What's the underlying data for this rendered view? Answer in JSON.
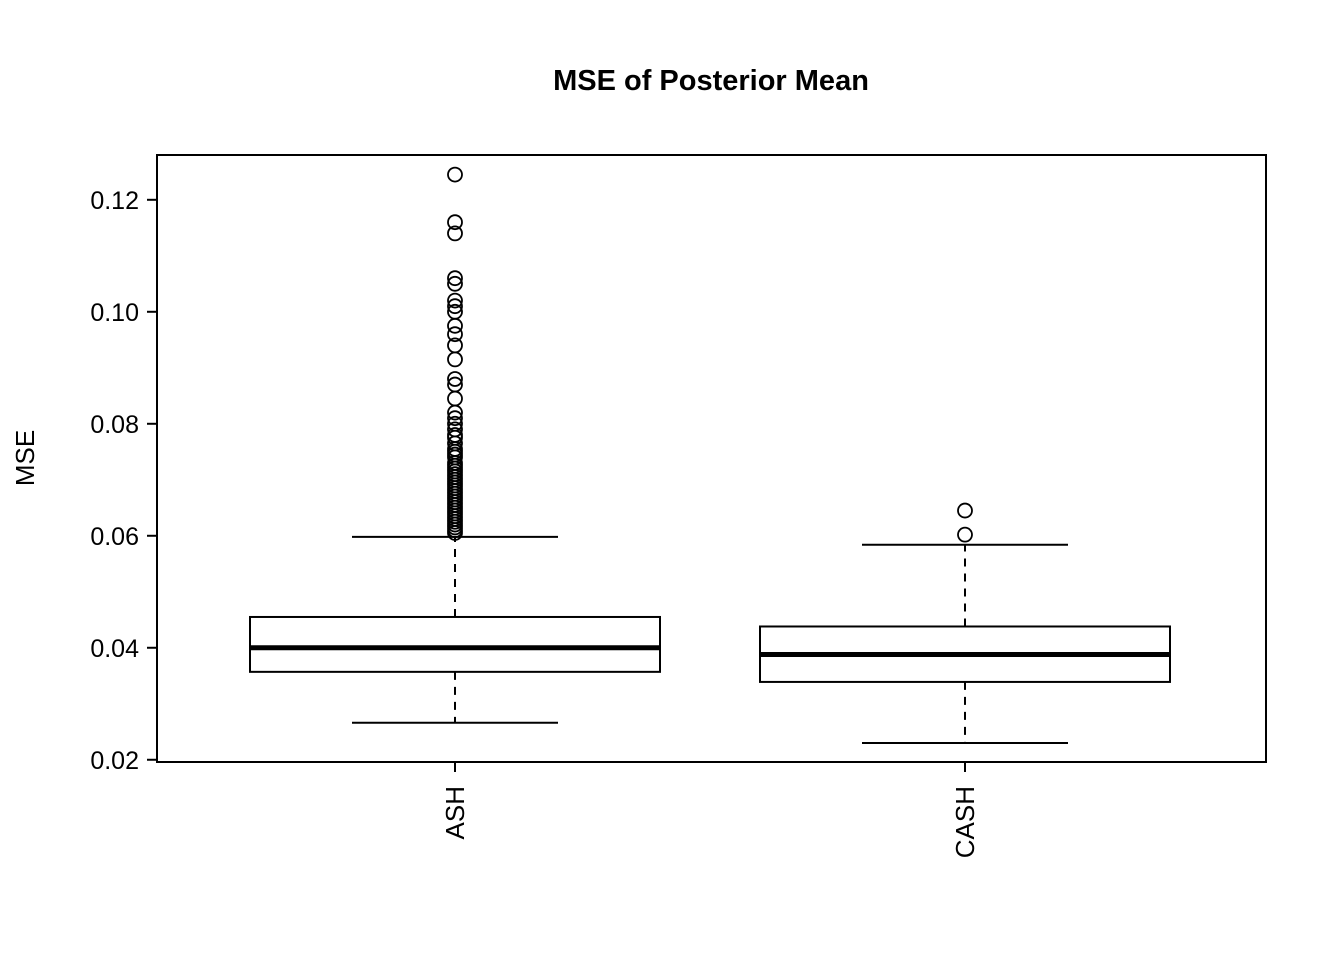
{
  "chart_data": {
    "type": "boxplot",
    "title": "MSE of Posterior Mean",
    "ylabel": "MSE",
    "xlabel": "",
    "categories": [
      "ASH",
      "CASH"
    ],
    "ylim": [
      0.0196,
      0.128
    ],
    "yticks": [
      0.02,
      0.04,
      0.06,
      0.08,
      0.1,
      0.12
    ],
    "ytick_labels": [
      "0.02",
      "0.04",
      "0.06",
      "0.08",
      "0.10",
      "0.12"
    ],
    "grid": false,
    "legend": "none",
    "line_color": "#000000",
    "background_color": "#ffffff",
    "series": [
      {
        "name": "ASH",
        "lower_whisker": 0.0266,
        "q1": 0.0357,
        "median": 0.04,
        "q3": 0.0455,
        "upper_whisker": 0.0598,
        "outliers": [
          0.1245,
          0.116,
          0.114,
          0.106,
          0.105,
          0.102,
          0.101,
          0.1,
          0.0975,
          0.096,
          0.094,
          0.0915,
          0.088,
          0.087,
          0.0845,
          0.082,
          0.081,
          0.08,
          0.079,
          0.078,
          0.0775,
          0.0765,
          0.0755,
          0.075,
          0.0745,
          0.074,
          0.073,
          0.0725,
          0.072,
          0.0715,
          0.071,
          0.0705,
          0.07,
          0.0695,
          0.069,
          0.0685,
          0.068,
          0.0675,
          0.067,
          0.0665,
          0.066,
          0.0655,
          0.065,
          0.0645,
          0.064,
          0.0635,
          0.063,
          0.0625,
          0.062,
          0.0615,
          0.061,
          0.0605
        ]
      },
      {
        "name": "CASH",
        "lower_whisker": 0.023,
        "q1": 0.0339,
        "median": 0.0388,
        "q3": 0.0438,
        "upper_whisker": 0.0584,
        "outliers": [
          0.0645,
          0.0602
        ]
      }
    ]
  }
}
